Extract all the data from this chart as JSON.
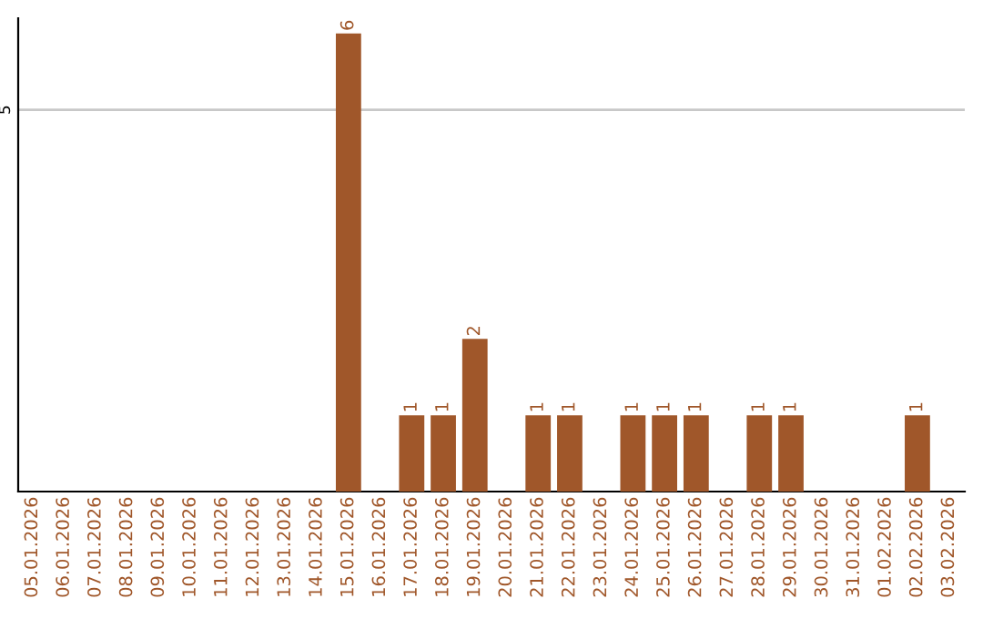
{
  "chart_data": {
    "type": "bar",
    "categories": [
      "05.01.2026",
      "06.01.2026",
      "07.01.2026",
      "08.01.2026",
      "09.01.2026",
      "10.01.2026",
      "11.01.2026",
      "12.01.2026",
      "13.01.2026",
      "14.01.2026",
      "15.01.2026",
      "16.01.2026",
      "17.01.2026",
      "18.01.2026",
      "19.01.2026",
      "20.01.2026",
      "21.01.2026",
      "22.01.2026",
      "23.01.2026",
      "24.01.2026",
      "25.01.2026",
      "26.01.2026",
      "27.01.2026",
      "28.01.2026",
      "29.01.2026",
      "30.01.2026",
      "31.01.2026",
      "01.02.2026",
      "02.02.2026",
      "03.02.2026"
    ],
    "values": [
      0,
      0,
      0,
      0,
      0,
      0,
      0,
      0,
      0,
      0,
      6,
      0,
      1,
      1,
      2,
      0,
      1,
      1,
      0,
      1,
      1,
      1,
      0,
      1,
      1,
      0,
      0,
      0,
      1,
      0
    ],
    "value_labels": [
      null,
      null,
      null,
      null,
      null,
      null,
      null,
      null,
      null,
      null,
      "6",
      null,
      "1",
      "1",
      "2",
      null,
      "1",
      "1",
      null,
      "1",
      "1",
      "1",
      null,
      "1",
      "1",
      null,
      null,
      null,
      "1",
      null
    ],
    "color": "#a0572a",
    "ylim": [
      0,
      6.2
    ],
    "yticks": [
      5
    ],
    "grid": "y",
    "legend": false
  }
}
